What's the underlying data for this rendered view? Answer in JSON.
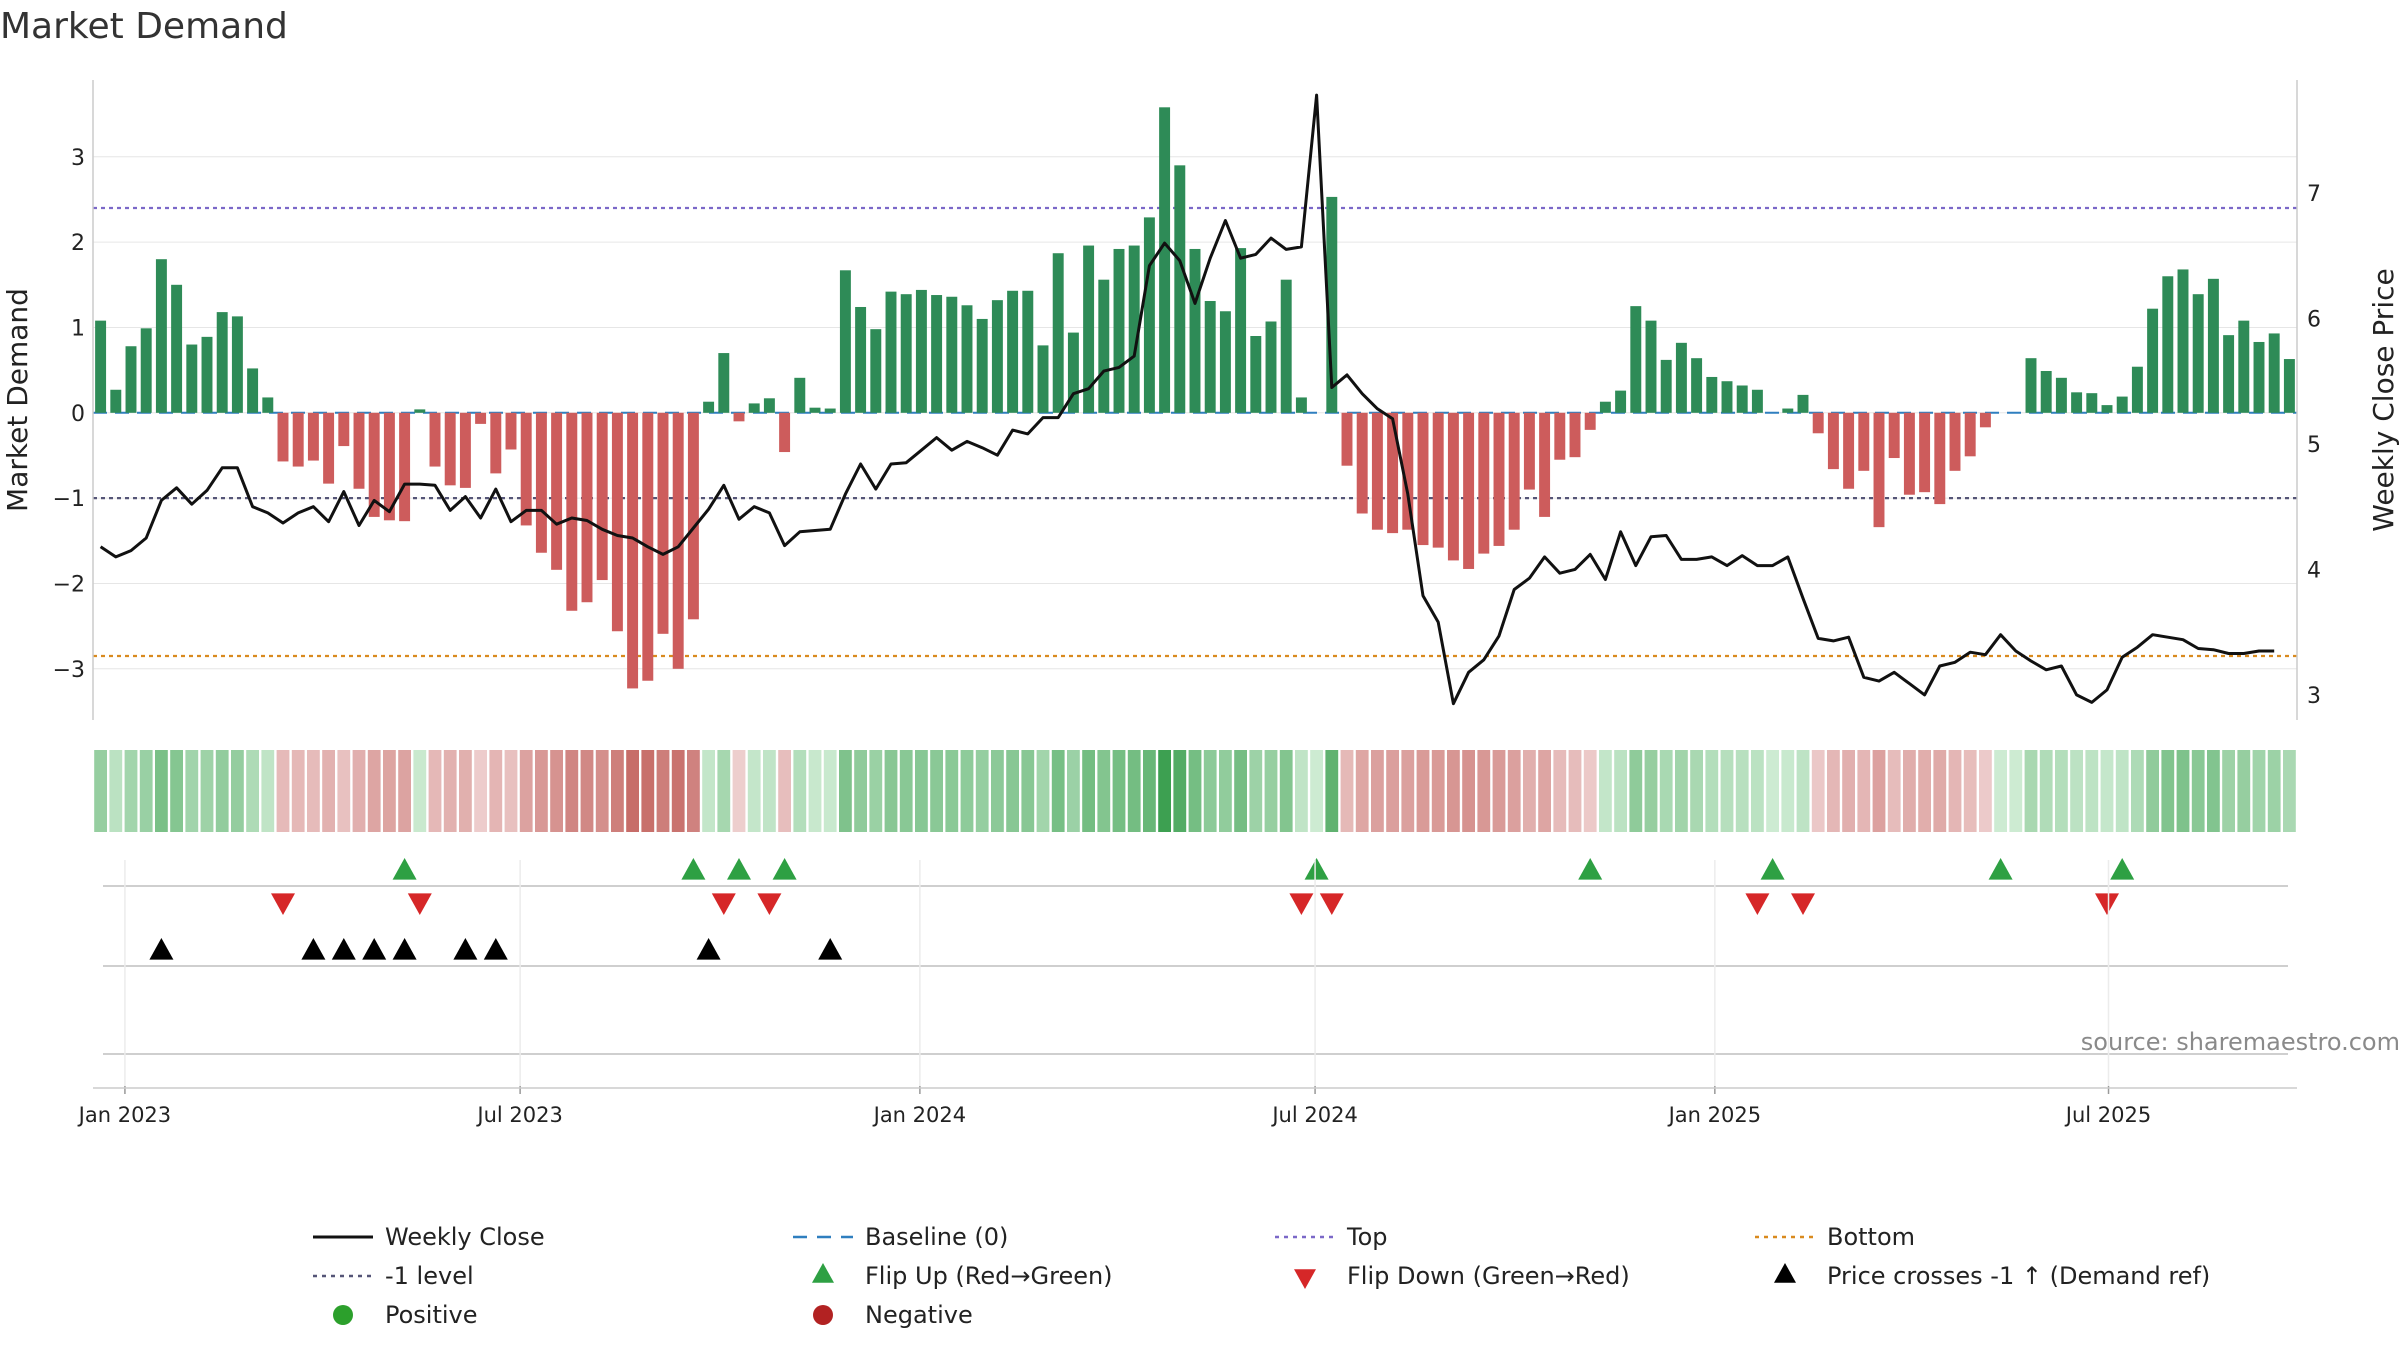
{
  "chart_data": {
    "type": "bar",
    "title": "Market Demand",
    "ylabel": "Market Demand",
    "y2label": "Weekly Close Price",
    "ylim": [
      -3.6,
      3.9
    ],
    "y2lim": [
      2.8,
      7.9
    ],
    "yticks": [
      -3,
      -2,
      -1,
      0,
      1,
      2,
      3
    ],
    "yticklabels": [
      "−3",
      "−2",
      "−1",
      "0",
      "1",
      "2",
      "3"
    ],
    "y2ticks": [
      3,
      4,
      5,
      6,
      7
    ],
    "y2ticklabels": [
      "3",
      "4",
      "5",
      "6",
      "7"
    ],
    "reference_lines": {
      "top": 2.4,
      "bottom": -2.85,
      "minus_one_level": -1,
      "baseline": 0
    },
    "x_start": "2022-12-21",
    "week_count": 145,
    "xticks": [
      {
        "week": 2.1,
        "label": "Jan 2023"
      },
      {
        "week": 28.1,
        "label": "Jul 2023"
      },
      {
        "week": 54.4,
        "label": "Jan 2024"
      },
      {
        "week": 80.4,
        "label": "Jul 2024"
      },
      {
        "week": 106.7,
        "label": "Jan 2025"
      },
      {
        "week": 132.6,
        "label": "Jul 2025"
      }
    ],
    "demand": [
      1.08,
      0.27,
      0.78,
      0.99,
      1.8,
      1.5,
      0.8,
      0.89,
      1.18,
      1.13,
      0.52,
      0.18,
      -0.57,
      -0.63,
      -0.56,
      -0.83,
      -0.39,
      -0.89,
      -1.22,
      -1.26,
      -1.27,
      0.04,
      -0.63,
      -0.85,
      -0.88,
      -0.13,
      -0.71,
      -0.43,
      -1.32,
      -1.64,
      -1.84,
      -2.32,
      -2.22,
      -1.96,
      -2.56,
      -3.23,
      -3.14,
      -2.59,
      -3.0,
      -2.42,
      0.13,
      0.7,
      -0.1,
      0.11,
      0.17,
      -0.46,
      0.41,
      0.06,
      0.05,
      1.67,
      1.24,
      0.98,
      1.42,
      1.39,
      1.44,
      1.38,
      1.36,
      1.26,
      1.1,
      1.32,
      1.43,
      1.43,
      0.79,
      1.87,
      0.94,
      1.96,
      1.56,
      1.92,
      1.96,
      2.29,
      3.58,
      2.9,
      1.92,
      1.31,
      1.19,
      1.93,
      0.9,
      1.07,
      1.56,
      0.18,
      0.0,
      2.53,
      -0.62,
      -1.18,
      -1.37,
      -1.41,
      -1.37,
      -1.55,
      -1.58,
      -1.73,
      -1.83,
      -1.65,
      -1.56,
      -1.37,
      -0.9,
      -1.22,
      -0.55,
      -0.52,
      -0.2,
      0.13,
      0.26,
      1.25,
      1.08,
      0.62,
      0.82,
      0.64,
      0.42,
      0.37,
      0.32,
      0.27,
      0.0,
      0.05,
      0.21,
      -0.24,
      -0.66,
      -0.89,
      -0.68,
      -1.34,
      -0.53,
      -0.96,
      -0.93,
      -1.07,
      -0.68,
      -0.51,
      -0.17,
      0.0,
      0.0,
      0.64,
      0.49,
      0.41,
      0.24,
      0.23,
      0.09,
      0.19,
      0.54,
      1.22,
      1.6,
      1.68,
      1.39,
      1.57,
      0.91,
      1.08,
      0.83,
      0.93,
      0.63
    ],
    "price": [
      4.18,
      4.1,
      4.15,
      4.25,
      4.55,
      4.65,
      4.52,
      4.63,
      4.81,
      4.81,
      4.5,
      4.45,
      4.37,
      4.45,
      4.5,
      4.38,
      4.62,
      4.35,
      4.55,
      4.46,
      4.68,
      4.68,
      4.67,
      4.47,
      4.58,
      4.41,
      4.64,
      4.38,
      4.47,
      4.47,
      4.36,
      4.41,
      4.39,
      4.32,
      4.27,
      4.25,
      4.18,
      4.12,
      4.18,
      4.33,
      4.48,
      4.67,
      4.4,
      4.5,
      4.45,
      4.19,
      4.3,
      4.31,
      4.32,
      4.6,
      4.84,
      4.64,
      4.84,
      4.85,
      4.95,
      5.05,
      4.95,
      5.02,
      4.97,
      4.91,
      5.11,
      5.08,
      5.21,
      5.21,
      5.4,
      5.44,
      5.58,
      5.61,
      5.7,
      6.42,
      6.6,
      6.46,
      6.12,
      6.48,
      6.78,
      6.48,
      6.51,
      6.64,
      6.55,
      6.57,
      7.78,
      5.45,
      5.55,
      5.4,
      5.28,
      5.2,
      4.6,
      3.79,
      3.58,
      2.93,
      3.18,
      3.28,
      3.47,
      3.84,
      3.93,
      4.1,
      3.97,
      4.0,
      4.12,
      3.92,
      4.3,
      4.03,
      4.26,
      4.27,
      4.08,
      4.08,
      4.1,
      4.03,
      4.11,
      4.03,
      4.03,
      4.1,
      3.77,
      3.45,
      3.43,
      3.46,
      3.14,
      3.11,
      3.18,
      3.09,
      3.0,
      3.23,
      3.26,
      3.34,
      3.32,
      3.48,
      3.35,
      3.27,
      3.2,
      3.23,
      3.0,
      2.94,
      3.04,
      3.3,
      3.38,
      3.48,
      3.46,
      3.44,
      3.37,
      3.36,
      3.33,
      3.33,
      3.35,
      3.35
    ],
    "flip_up_weeks": [
      20.5,
      39.5,
      42.5,
      45.5,
      80.5,
      98.5,
      110.5,
      125.5,
      133.5
    ],
    "flip_down_weeks": [
      12.5,
      21.5,
      41.5,
      44.5,
      79.5,
      81.5,
      109.5,
      112.5,
      132.5
    ],
    "price_cross_weeks": [
      4.5,
      14.5,
      16.5,
      18.5,
      20.5,
      24.5,
      26.5,
      40.5,
      48.5
    ],
    "source_label": "source: sharemaestro.com",
    "legend": [
      {
        "label": "Weekly Close",
        "kind": "line",
        "color": "#111111"
      },
      {
        "label": "Baseline (0)",
        "kind": "dash",
        "color": "#2f7fbf"
      },
      {
        "label": "Top",
        "kind": "dot",
        "color": "#7b68c8"
      },
      {
        "label": "Bottom",
        "kind": "dot",
        "color": "#d98a1e"
      },
      {
        "label": "-1 level",
        "kind": "dot",
        "color": "#555577"
      },
      {
        "label": "Flip Up (Red→Green)",
        "kind": "tri-up",
        "color": "#2ea043"
      },
      {
        "label": "Flip Down (Green→Red)",
        "kind": "tri-down",
        "color": "#d62728"
      },
      {
        "label": "Price crosses -1 ↑ (Demand ref)",
        "kind": "tri-up",
        "color": "#000000"
      },
      {
        "label": "Positive",
        "kind": "circle",
        "color": "#2ca02c"
      },
      {
        "label": "Negative",
        "kind": "circle",
        "color": "#b22222"
      }
    ],
    "colors": {
      "positive_bar": "#2e8b57",
      "negative_bar": "#cd5c5c",
      "price_line": "#111111",
      "top_line": "#7b68c8",
      "bottom_line": "#d98a1e",
      "minus_one_line": "#555577",
      "baseline": "#2f7fbf"
    }
  }
}
